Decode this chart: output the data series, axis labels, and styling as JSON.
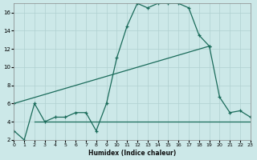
{
  "background_color": "#cce8e8",
  "grid_color": "#b0d0d0",
  "line_color": "#1a6b5a",
  "xlim": [
    0,
    23
  ],
  "ylim": [
    2,
    17
  ],
  "yticks": [
    2,
    4,
    6,
    8,
    10,
    12,
    14,
    16
  ],
  "xticks": [
    0,
    1,
    2,
    3,
    4,
    5,
    6,
    7,
    8,
    9,
    10,
    11,
    12,
    13,
    14,
    15,
    16,
    17,
    18,
    19,
    20,
    21,
    22,
    23
  ],
  "xlabel": "Humidex (Indice chaleur)",
  "series": [
    {
      "x": [
        0,
        1,
        2,
        3,
        4,
        5,
        6,
        7,
        8,
        9,
        10,
        11,
        12,
        13,
        14,
        15,
        16,
        17,
        18,
        19
      ],
      "y": [
        3.0,
        2.0,
        6.0,
        4.0,
        4.5,
        4.5,
        5.0,
        5.0,
        3.0,
        6.0,
        11.0,
        14.5,
        17.0,
        16.5,
        17.0,
        17.0,
        17.0,
        16.5,
        13.5,
        12.3
      ],
      "marker": true
    },
    {
      "x": [
        0,
        19,
        20,
        21,
        22,
        23
      ],
      "y": [
        6.0,
        12.3,
        6.7,
        5.0,
        5.2,
        4.5
      ],
      "marker": true
    },
    {
      "x": [
        2,
        20,
        22,
        23
      ],
      "y": [
        4.0,
        4.0,
        4.0,
        4.0
      ],
      "marker": false
    }
  ]
}
